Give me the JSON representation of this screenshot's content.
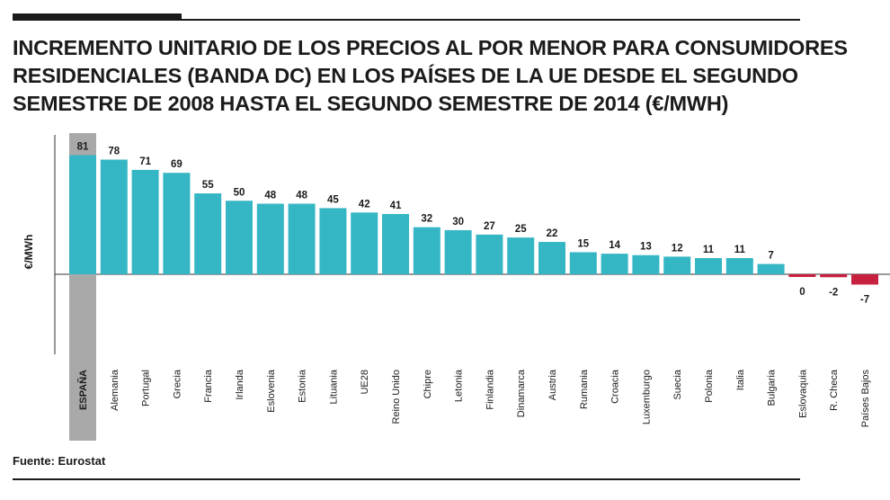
{
  "header": {
    "title_lines": [
      "INCREMENTO UNITARIO DE LOS PRECIOS AL POR MENOR PARA CONSUMIDORES",
      "RESIDENCIALES (BANDA DC) EN LOS PAÍSES DE LA UE DESDE EL SEGUNDO",
      "SEMESTRE DE 2008 HASTA EL SEGUNDO SEMESTRE DE 2014 (€/MWH)"
    ]
  },
  "footer": {
    "source": "Fuente: Eurostat"
  },
  "colors": {
    "positive": "#35b6c4",
    "negative": "#c8203f",
    "highlight": "#a9a9a9",
    "axis": "#333333",
    "text": "#1a1a1a"
  },
  "chart_data": {
    "type": "bar",
    "title": "INCREMENTO UNITARIO DE LOS PRECIOS AL POR MENOR PARA CONSUMIDORES RESIDENCIALES (BANDA DC) EN LOS PAÍSES DE LA UE DESDE EL SEGUNDO SEMESTRE DE 2008 HASTA EL SEGUNDO SEMESTRE DE 2014 (€/MWH)",
    "ylabel": "€/MWh",
    "xlabel": "",
    "highlight_category": "ESPAÑA",
    "categories": [
      "ESPAÑA",
      "Alemania",
      "Portugal",
      "Grecia",
      "Francia",
      "Irlanda",
      "Eslovenia",
      "Estonia",
      "Lituania",
      "UE28",
      "Reino Unido",
      "Chipre",
      "Letonia",
      "Finlandia",
      "Dinamarca",
      "Austria",
      "Rumania",
      "Croacia",
      "Luxemburgo",
      "Suecia",
      "Polonia",
      "Italia",
      "Bulgaria",
      "Eslovaquia",
      "R. Checa",
      "Países Bajos"
    ],
    "values": [
      81,
      78,
      71,
      69,
      55,
      50,
      48,
      48,
      45,
      42,
      41,
      32,
      30,
      27,
      25,
      22,
      15,
      14,
      13,
      12,
      11,
      11,
      7,
      0,
      -2,
      -7
    ],
    "value_labels": [
      "81",
      "78",
      "71",
      "69",
      "55",
      "50",
      "48",
      "48",
      "45",
      "42",
      "41",
      "32",
      "30",
      "27",
      "25",
      "22",
      "15",
      "14",
      "13",
      "12",
      "11",
      "11",
      "7",
      "0",
      "-2",
      "-7"
    ]
  }
}
